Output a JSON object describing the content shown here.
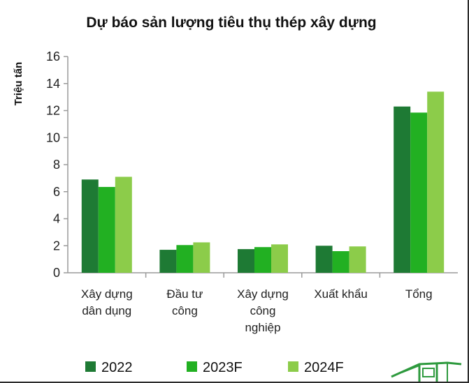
{
  "chart_data": {
    "type": "bar",
    "title": "Dự báo sản lượng tiêu thụ thép xây dựng",
    "ylabel": "Triệu tấn",
    "xlabel": "",
    "ylim": [
      0,
      16
    ],
    "yticks": [
      0,
      2,
      4,
      6,
      8,
      10,
      12,
      14,
      16
    ],
    "categories": [
      [
        "Xây dựng",
        "dân dụng"
      ],
      [
        "Đầu tư",
        "công"
      ],
      [
        "Xây dựng",
        "công",
        "nghiệp"
      ],
      [
        "Xuất khẩu"
      ],
      [
        "Tổng"
      ]
    ],
    "series": [
      {
        "name": "2022",
        "color": "#1e7a34",
        "values": [
          6.9,
          1.7,
          1.75,
          2.0,
          12.3
        ]
      },
      {
        "name": "2023F",
        "color": "#22b022",
        "values": [
          6.35,
          2.05,
          1.9,
          1.6,
          11.85
        ]
      },
      {
        "name": "2024F",
        "color": "#8ccc4a",
        "values": [
          7.1,
          2.25,
          2.1,
          1.95,
          13.4
        ]
      }
    ],
    "legend_position": "bottom",
    "grid": false
  }
}
